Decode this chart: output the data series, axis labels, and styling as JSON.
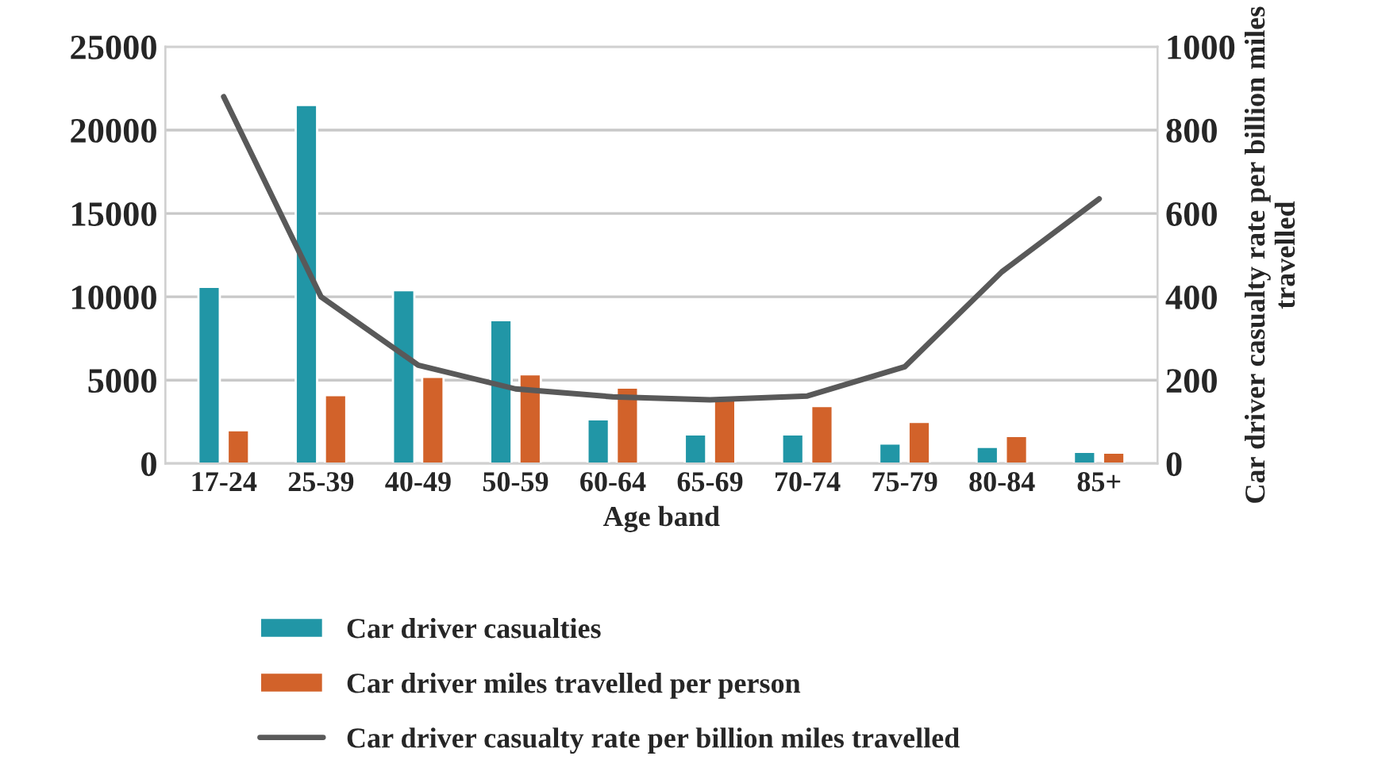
{
  "chart_data": {
    "type": "bar",
    "xlabel": "Age band",
    "y2label": "Car driver casualty rate per billion miles travelled",
    "categories": [
      "17-24",
      "25-39",
      "40-49",
      "50-59",
      "60-64",
      "65-69",
      "70-74",
      "75-79",
      "80-84",
      "85+"
    ],
    "series": [
      {
        "name": "Car driver casualties",
        "color": "#2196a6",
        "values": [
          10600,
          21500,
          10400,
          8600,
          2650,
          1750,
          1750,
          1200,
          1000,
          700
        ]
      },
      {
        "name": "Car driver miles travelled per person",
        "color": "#d2622a",
        "values": [
          2000,
          4100,
          5200,
          5350,
          4550,
          3800,
          3450,
          2500,
          1650,
          650
        ]
      },
      {
        "name": "Car driver casualty rate per billion miles travelled",
        "type": "line",
        "axis": "y2",
        "color": "#595959",
        "values": [
          880,
          400,
          236,
          179,
          160,
          153,
          162,
          232,
          460,
          635
        ]
      }
    ],
    "ylim": [
      0,
      25000
    ],
    "yticks": [
      0,
      5000,
      10000,
      15000,
      20000,
      25000
    ],
    "y2lim": [
      0,
      1000
    ],
    "y2ticks": [
      0,
      200,
      400,
      600,
      800,
      1000
    ],
    "grid": "y",
    "legend": "bottom"
  }
}
